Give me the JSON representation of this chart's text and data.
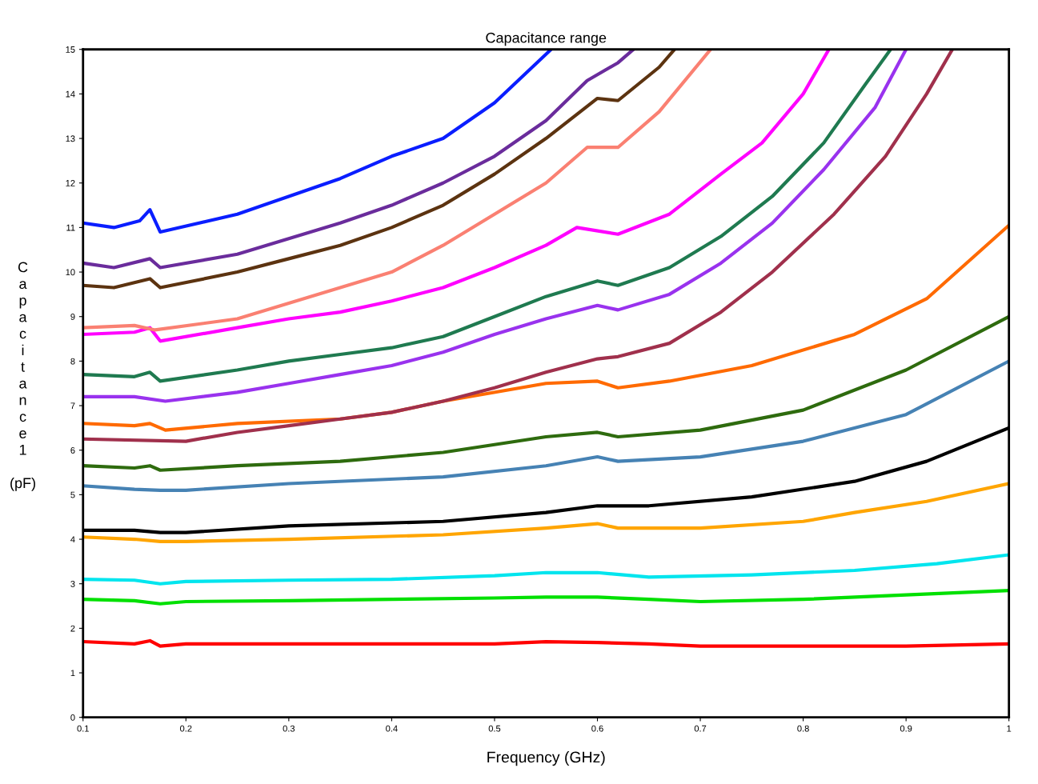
{
  "chart_data": {
    "type": "line",
    "title": "Capacitance range",
    "xlabel": "Frequency (GHz)",
    "ylabel": "Capacitance1 (pF)",
    "xlim": [
      0.1,
      1
    ],
    "xticks": [
      0.1,
      0.2,
      0.3,
      0.4,
      0.5,
      0.6,
      0.7,
      0.8,
      0.9,
      1
    ],
    "ylim": [
      0,
      15
    ],
    "yticks": [
      0,
      1,
      2,
      3,
      4,
      5,
      6,
      7,
      8,
      9,
      10,
      11,
      12,
      13,
      14,
      15
    ],
    "grid": false,
    "marker": "none",
    "line_style": "solid",
    "series": [
      {
        "color": "#ff0000",
        "x": [
          0.1,
          0.15,
          0.165,
          0.175,
          0.2,
          0.3,
          0.4,
          0.5,
          0.55,
          0.6,
          0.65,
          0.7,
          0.8,
          0.9,
          1.0
        ],
        "values": [
          1.7,
          1.65,
          1.72,
          1.6,
          1.65,
          1.65,
          1.65,
          1.65,
          1.7,
          1.68,
          1.65,
          1.6,
          1.6,
          1.6,
          1.65
        ]
      },
      {
        "color": "#00e000",
        "x": [
          0.1,
          0.15,
          0.175,
          0.2,
          0.3,
          0.4,
          0.5,
          0.55,
          0.6,
          0.65,
          0.7,
          0.8,
          0.9,
          1.0
        ],
        "values": [
          2.65,
          2.62,
          2.55,
          2.6,
          2.62,
          2.65,
          2.68,
          2.7,
          2.7,
          2.65,
          2.6,
          2.65,
          2.75,
          2.85
        ]
      },
      {
        "color": "#00e5ee",
        "x": [
          0.1,
          0.15,
          0.175,
          0.2,
          0.3,
          0.4,
          0.5,
          0.55,
          0.6,
          0.65,
          0.75,
          0.85,
          0.93,
          1.0
        ],
        "values": [
          3.1,
          3.08,
          3.0,
          3.05,
          3.08,
          3.1,
          3.18,
          3.25,
          3.25,
          3.15,
          3.2,
          3.3,
          3.45,
          3.65
        ]
      },
      {
        "color": "#ffa500",
        "x": [
          0.1,
          0.15,
          0.175,
          0.2,
          0.3,
          0.45,
          0.55,
          0.6,
          0.62,
          0.7,
          0.8,
          0.85,
          0.92,
          1.0
        ],
        "values": [
          4.05,
          4.0,
          3.95,
          3.95,
          4.0,
          4.1,
          4.25,
          4.35,
          4.25,
          4.25,
          4.4,
          4.6,
          4.85,
          5.25
        ]
      },
      {
        "color": "#000000",
        "x": [
          0.1,
          0.15,
          0.175,
          0.2,
          0.3,
          0.45,
          0.55,
          0.6,
          0.65,
          0.75,
          0.85,
          0.92,
          1.0
        ],
        "values": [
          4.2,
          4.2,
          4.15,
          4.15,
          4.3,
          4.4,
          4.6,
          4.75,
          4.75,
          4.95,
          5.3,
          5.75,
          6.5
        ]
      },
      {
        "color": "#4682b4",
        "x": [
          0.1,
          0.15,
          0.175,
          0.2,
          0.3,
          0.45,
          0.55,
          0.6,
          0.62,
          0.7,
          0.8,
          0.9,
          1.0
        ],
        "values": [
          5.2,
          5.12,
          5.1,
          5.1,
          5.25,
          5.4,
          5.65,
          5.85,
          5.75,
          5.85,
          6.2,
          6.8,
          8.0
        ]
      },
      {
        "color": "#2e6b0e",
        "x": [
          0.1,
          0.15,
          0.165,
          0.175,
          0.25,
          0.35,
          0.45,
          0.55,
          0.6,
          0.62,
          0.7,
          0.8,
          0.9,
          1.0
        ],
        "values": [
          5.65,
          5.6,
          5.65,
          5.55,
          5.65,
          5.75,
          5.95,
          6.3,
          6.4,
          6.3,
          6.45,
          6.9,
          7.8,
          9.0
        ]
      },
      {
        "color": "#ff6a00",
        "x": [
          0.1,
          0.15,
          0.165,
          0.18,
          0.25,
          0.35,
          0.4,
          0.45,
          0.55,
          0.6,
          0.62,
          0.67,
          0.75,
          0.85,
          0.92,
          1.0
        ],
        "values": [
          6.6,
          6.55,
          6.6,
          6.45,
          6.6,
          6.7,
          6.85,
          7.1,
          7.5,
          7.55,
          7.4,
          7.55,
          7.9,
          8.6,
          9.4,
          11.05
        ]
      },
      {
        "color": "#a0304c",
        "x": [
          0.1,
          0.2,
          0.25,
          0.3,
          0.35,
          0.4,
          0.45,
          0.5,
          0.55,
          0.6,
          0.62,
          0.67,
          0.72,
          0.77,
          0.83,
          0.88,
          0.92,
          0.945
        ],
        "values": [
          6.25,
          6.2,
          6.4,
          6.55,
          6.7,
          6.85,
          7.1,
          7.4,
          7.75,
          8.05,
          8.1,
          8.4,
          9.1,
          10.0,
          11.3,
          12.6,
          14.0,
          15
        ]
      },
      {
        "color": "#9932ee",
        "x": [
          0.1,
          0.15,
          0.18,
          0.25,
          0.3,
          0.35,
          0.4,
          0.45,
          0.5,
          0.55,
          0.6,
          0.62,
          0.67,
          0.72,
          0.77,
          0.82,
          0.87,
          0.9
        ],
        "values": [
          7.2,
          7.2,
          7.1,
          7.3,
          7.5,
          7.7,
          7.9,
          8.2,
          8.6,
          8.95,
          9.25,
          9.15,
          9.5,
          10.2,
          11.1,
          12.3,
          13.7,
          15
        ]
      },
      {
        "color": "#1f7a50",
        "x": [
          0.1,
          0.15,
          0.165,
          0.175,
          0.25,
          0.3,
          0.35,
          0.4,
          0.45,
          0.5,
          0.55,
          0.6,
          0.62,
          0.67,
          0.72,
          0.77,
          0.82,
          0.86,
          0.885
        ],
        "values": [
          7.7,
          7.65,
          7.75,
          7.55,
          7.8,
          8.0,
          8.15,
          8.3,
          8.55,
          9.0,
          9.45,
          9.8,
          9.7,
          10.1,
          10.8,
          11.7,
          12.9,
          14.2,
          15
        ]
      },
      {
        "color": "#ff00ff",
        "x": [
          0.1,
          0.15,
          0.165,
          0.175,
          0.25,
          0.3,
          0.35,
          0.4,
          0.45,
          0.5,
          0.55,
          0.58,
          0.62,
          0.67,
          0.72,
          0.76,
          0.8,
          0.825
        ],
        "values": [
          8.6,
          8.65,
          8.75,
          8.45,
          8.75,
          8.95,
          9.1,
          9.35,
          9.65,
          10.1,
          10.6,
          11.0,
          10.85,
          11.3,
          12.2,
          12.9,
          14.0,
          15
        ]
      },
      {
        "color": "#fa8072",
        "x": [
          0.1,
          0.15,
          0.17,
          0.25,
          0.3,
          0.35,
          0.4,
          0.45,
          0.5,
          0.55,
          0.59,
          0.62,
          0.66,
          0.71
        ],
        "values": [
          8.75,
          8.8,
          8.7,
          8.95,
          9.3,
          9.65,
          10.0,
          10.6,
          11.3,
          12.0,
          12.8,
          12.8,
          13.6,
          15
        ]
      },
      {
        "color": "#5c3310",
        "x": [
          0.1,
          0.13,
          0.165,
          0.175,
          0.25,
          0.3,
          0.35,
          0.4,
          0.45,
          0.5,
          0.55,
          0.6,
          0.62,
          0.66,
          0.675
        ],
        "values": [
          9.7,
          9.65,
          9.85,
          9.65,
          10.0,
          10.3,
          10.6,
          11.0,
          11.5,
          12.2,
          13.0,
          13.9,
          13.85,
          14.6,
          15
        ]
      },
      {
        "color": "#6a2c9c",
        "x": [
          0.1,
          0.13,
          0.165,
          0.175,
          0.25,
          0.3,
          0.35,
          0.4,
          0.45,
          0.5,
          0.55,
          0.59,
          0.62,
          0.635
        ],
        "values": [
          10.2,
          10.1,
          10.3,
          10.1,
          10.4,
          10.75,
          11.1,
          11.5,
          12.0,
          12.6,
          13.4,
          14.3,
          14.7,
          15
        ]
      },
      {
        "color": "#0a1eff",
        "x": [
          0.1,
          0.13,
          0.155,
          0.165,
          0.175,
          0.25,
          0.3,
          0.35,
          0.4,
          0.45,
          0.5,
          0.555
        ],
        "values": [
          11.1,
          11.0,
          11.15,
          11.4,
          10.9,
          11.3,
          11.7,
          12.1,
          12.6,
          13.0,
          13.8,
          15
        ]
      }
    ]
  }
}
